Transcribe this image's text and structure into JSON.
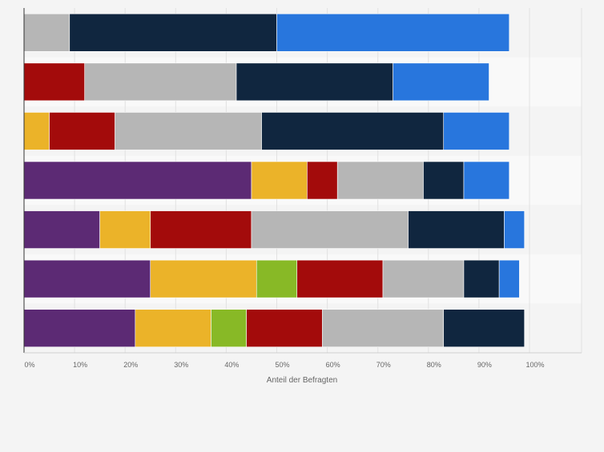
{
  "chart_data": {
    "type": "bar",
    "orientation": "horizontal",
    "stacked": true,
    "xlabel": "Anteil der Befragten",
    "ylabel": "",
    "xlim": [
      0,
      110
    ],
    "x_ticks": [
      0,
      10,
      20,
      30,
      40,
      50,
      60,
      70,
      80,
      90,
      100
    ],
    "x_tick_labels": [
      "0%",
      "10%",
      "20%",
      "30%",
      "40%",
      "50%",
      "60%",
      "70%",
      "80%",
      "90%",
      "100%"
    ],
    "grid": true,
    "legend": "none",
    "category_labels_visible": false,
    "rows": 7,
    "series": [
      {
        "color": "#5c2a74",
        "values": [
          0,
          0,
          0,
          45,
          15,
          25,
          22
        ]
      },
      {
        "color": "#ebb329",
        "values": [
          0,
          0,
          5,
          11,
          10,
          21,
          15
        ]
      },
      {
        "color": "#88b926",
        "values": [
          0,
          0,
          0,
          0,
          0,
          8,
          7
        ]
      },
      {
        "color": "#a30b0b",
        "values": [
          0,
          12,
          13,
          6,
          20,
          17,
          15
        ]
      },
      {
        "color": "#b6b6b6",
        "values": [
          9,
          30,
          29,
          17,
          31,
          16,
          24
        ]
      },
      {
        "color": "#10263f",
        "values": [
          41,
          31,
          36,
          8,
          19,
          7,
          16
        ]
      },
      {
        "color": "#2876dd",
        "values": [
          46,
          19,
          13,
          9,
          4,
          4,
          0
        ]
      }
    ]
  }
}
